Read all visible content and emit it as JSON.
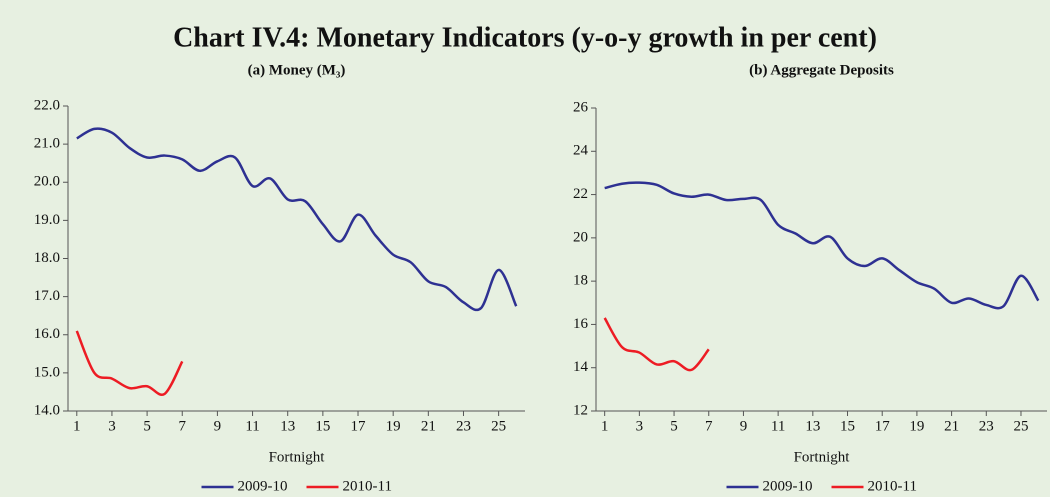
{
  "title": "Chart IV.4: Monetary Indicators (y-o-y growth in per cent)",
  "chart_data": [
    {
      "type": "line",
      "subtitle": "(a) Money (M₃)",
      "x_label": "Fortnight",
      "x": [
        1,
        2,
        3,
        4,
        5,
        6,
        7,
        8,
        9,
        10,
        11,
        12,
        13,
        14,
        15,
        16,
        17,
        18,
        19,
        20,
        21,
        22,
        23,
        24,
        25,
        26
      ],
      "xlim": [
        0.5,
        26.5
      ],
      "xticks": [
        1,
        3,
        5,
        7,
        9,
        11,
        13,
        15,
        17,
        19,
        21,
        23,
        25
      ],
      "ylim": [
        14,
        22
      ],
      "yticks": [
        {
          "value": 14,
          "label": "14.0"
        },
        {
          "value": 15,
          "label": "15.0"
        },
        {
          "value": 16,
          "label": "16.0"
        },
        {
          "value": 17,
          "label": "17.0"
        },
        {
          "value": 18,
          "label": "18.0"
        },
        {
          "value": 19,
          "label": "19.0"
        },
        {
          "value": 20,
          "label": "20.0"
        },
        {
          "value": 21,
          "label": "21.0"
        },
        {
          "value": 22,
          "label": "22.0"
        }
      ],
      "series": [
        {
          "name": "2009-10",
          "color": "#2e3192",
          "values": [
            21.15,
            21.4,
            21.3,
            20.9,
            20.65,
            20.7,
            20.6,
            20.3,
            20.55,
            20.65,
            19.9,
            20.1,
            19.55,
            19.5,
            18.9,
            18.45,
            19.15,
            18.6,
            18.1,
            17.9,
            17.4,
            17.25,
            16.85,
            16.7,
            17.7,
            16.75
          ]
        },
        {
          "name": "2010-11",
          "color": "#ed1c24",
          "values": [
            16.1,
            15.0,
            14.85,
            14.6,
            14.65,
            14.45,
            15.3,
            null,
            null,
            null,
            null,
            null,
            null,
            null,
            null,
            null,
            null,
            null,
            null,
            null,
            null,
            null,
            null,
            null,
            null,
            null
          ]
        }
      ]
    },
    {
      "type": "line",
      "subtitle": "(b) Aggregate Deposits",
      "x_label": "Fortnight",
      "x": [
        1,
        2,
        3,
        4,
        5,
        6,
        7,
        8,
        9,
        10,
        11,
        12,
        13,
        14,
        15,
        16,
        17,
        18,
        19,
        20,
        21,
        22,
        23,
        24,
        25,
        26
      ],
      "xlim": [
        0.5,
        26.5
      ],
      "xticks": [
        1,
        3,
        5,
        7,
        9,
        11,
        13,
        15,
        17,
        19,
        21,
        23,
        25
      ],
      "ylim": [
        12,
        26
      ],
      "yticks": [
        12,
        14,
        16,
        18,
        20,
        22,
        24,
        26
      ],
      "series": [
        {
          "name": "2009-10",
          "color": "#2e3192",
          "values": [
            22.3,
            22.5,
            22.55,
            22.45,
            22.05,
            21.9,
            22.0,
            21.75,
            21.8,
            21.75,
            20.6,
            20.2,
            19.75,
            20.05,
            19.05,
            18.7,
            19.05,
            18.5,
            17.95,
            17.65,
            17.0,
            17.2,
            16.9,
            16.85,
            18.25,
            17.1
          ]
        },
        {
          "name": "2010-11",
          "color": "#ed1c24",
          "values": [
            16.3,
            14.95,
            14.7,
            14.15,
            14.3,
            13.9,
            14.85,
            null,
            null,
            null,
            null,
            null,
            null,
            null,
            null,
            null,
            null,
            null,
            null,
            null,
            null,
            null,
            null,
            null,
            null,
            null
          ]
        }
      ]
    }
  ]
}
